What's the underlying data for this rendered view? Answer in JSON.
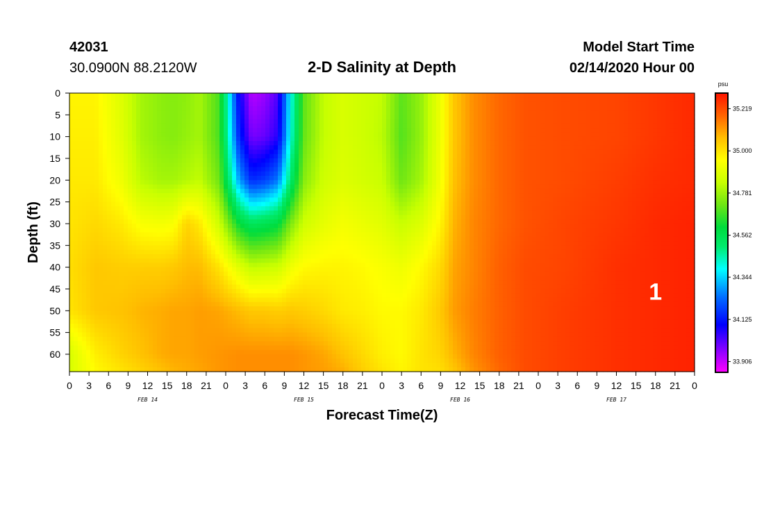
{
  "header": {
    "station_id": "42031",
    "coords": "30.0900N 88.2120W",
    "title": "2-D Salinity at Depth",
    "start_label": "Model Start Time",
    "start_time": "02/14/2020 Hour 00"
  },
  "chart_data": {
    "type": "heatmap",
    "title": "2-D Salinity at Depth",
    "xlabel": "Forecast Time(Z)",
    "ylabel": "Depth (ft)",
    "x_ticks": [
      "0",
      "3",
      "6",
      "9",
      "12",
      "15",
      "18",
      "21",
      "0",
      "3",
      "6",
      "9",
      "12",
      "15",
      "18",
      "21",
      "0",
      "3",
      "6",
      "9",
      "12",
      "15",
      "18",
      "21",
      "0",
      "3",
      "6",
      "9",
      "12",
      "15",
      "18",
      "21",
      "0"
    ],
    "day_labels": [
      {
        "label": "FEB 14",
        "hour": 12
      },
      {
        "label": "FEB 15",
        "hour": 36
      },
      {
        "label": "FEB 16",
        "hour": 60
      },
      {
        "label": "FEB 17",
        "hour": 84
      }
    ],
    "xlim": [
      0,
      96
    ],
    "y_ticks": [
      0,
      5,
      10,
      15,
      20,
      25,
      30,
      35,
      40,
      45,
      50,
      55,
      60
    ],
    "ylim": [
      0,
      64
    ],
    "y_inverted": true,
    "colorbar": {
      "unit": "psu",
      "ticks": [
        "35.219",
        "35.000",
        "34.781",
        "34.562",
        "34.344",
        "34.125",
        "33.906"
      ],
      "min": 33.85,
      "max": 35.3
    },
    "annotation": "1",
    "profile_depths": [
      0,
      10,
      20,
      30,
      40,
      50,
      60,
      64
    ],
    "hours": [
      0,
      4,
      8,
      11,
      14,
      16,
      18,
      20,
      23,
      26,
      28,
      30,
      32,
      34,
      36,
      39,
      42,
      45,
      48,
      51,
      54,
      57,
      59,
      62,
      66,
      70,
      76,
      84,
      90,
      96
    ],
    "salinity": [
      [
        34.97,
        34.98,
        34.99,
        35.0,
        35.01,
        35.0,
        34.87,
        34.87
      ],
      [
        34.97,
        34.98,
        34.99,
        35.02,
        35.05,
        35.05,
        34.98,
        34.96
      ],
      [
        34.88,
        34.89,
        34.92,
        34.99,
        35.04,
        35.06,
        35.03,
        35.0
      ],
      [
        34.79,
        34.79,
        34.82,
        34.94,
        35.04,
        35.08,
        35.06,
        35.03
      ],
      [
        34.76,
        34.76,
        34.79,
        34.93,
        35.04,
        35.09,
        35.09,
        35.06
      ],
      [
        34.75,
        34.75,
        34.79,
        34.94,
        35.05,
        35.1,
        35.1,
        35.08
      ],
      [
        34.76,
        34.77,
        34.81,
        35.03,
        35.07,
        35.1,
        35.1,
        35.09
      ],
      [
        34.79,
        34.79,
        34.83,
        34.99,
        35.07,
        35.11,
        35.11,
        35.1
      ],
      [
        34.68,
        34.68,
        34.72,
        34.85,
        35.0,
        35.1,
        35.12,
        35.12
      ],
      [
        34.1,
        34.15,
        34.3,
        34.61,
        34.89,
        35.07,
        35.13,
        35.13
      ],
      [
        33.92,
        33.98,
        34.15,
        34.54,
        34.83,
        35.05,
        35.13,
        35.13
      ],
      [
        33.95,
        34.0,
        34.18,
        34.56,
        34.84,
        35.05,
        35.13,
        35.13
      ],
      [
        34.02,
        34.06,
        34.25,
        34.59,
        34.85,
        35.04,
        35.13,
        35.13
      ],
      [
        34.4,
        34.42,
        34.52,
        34.74,
        34.92,
        35.05,
        35.13,
        35.13
      ],
      [
        34.7,
        34.71,
        34.75,
        34.85,
        34.96,
        35.04,
        35.12,
        35.12
      ],
      [
        34.83,
        34.83,
        34.85,
        34.9,
        34.97,
        35.02,
        35.1,
        35.11
      ],
      [
        34.87,
        34.87,
        34.88,
        34.93,
        34.97,
        34.99,
        35.06,
        35.09
      ],
      [
        34.85,
        34.85,
        34.86,
        34.91,
        34.96,
        34.98,
        35.02,
        35.04
      ],
      [
        34.83,
        34.82,
        34.84,
        34.89,
        34.94,
        34.96,
        34.98,
        35.0
      ],
      [
        34.7,
        34.69,
        34.72,
        34.84,
        34.92,
        34.96,
        34.96,
        34.97
      ],
      [
        34.77,
        34.77,
        34.79,
        34.88,
        34.96,
        34.99,
        35.0,
        35.0
      ],
      [
        34.92,
        34.92,
        34.93,
        34.97,
        35.02,
        35.05,
        35.03,
        35.01
      ],
      [
        35.05,
        35.05,
        35.06,
        35.08,
        35.1,
        35.11,
        35.08,
        35.05
      ],
      [
        35.13,
        35.13,
        35.13,
        35.14,
        35.14,
        35.15,
        35.14,
        35.12
      ],
      [
        35.18,
        35.18,
        35.18,
        35.18,
        35.19,
        35.19,
        35.19,
        35.18
      ],
      [
        35.21,
        35.21,
        35.21,
        35.21,
        35.22,
        35.22,
        35.22,
        35.22
      ],
      [
        35.22,
        35.22,
        35.22,
        35.23,
        35.23,
        35.24,
        35.24,
        35.24
      ],
      [
        35.23,
        35.23,
        35.24,
        35.25,
        35.26,
        35.26,
        35.26,
        35.26
      ],
      [
        35.25,
        35.25,
        35.26,
        35.27,
        35.27,
        35.27,
        35.27,
        35.27
      ],
      [
        35.27,
        35.27,
        35.27,
        35.28,
        35.28,
        35.28,
        35.28,
        35.28
      ]
    ]
  }
}
